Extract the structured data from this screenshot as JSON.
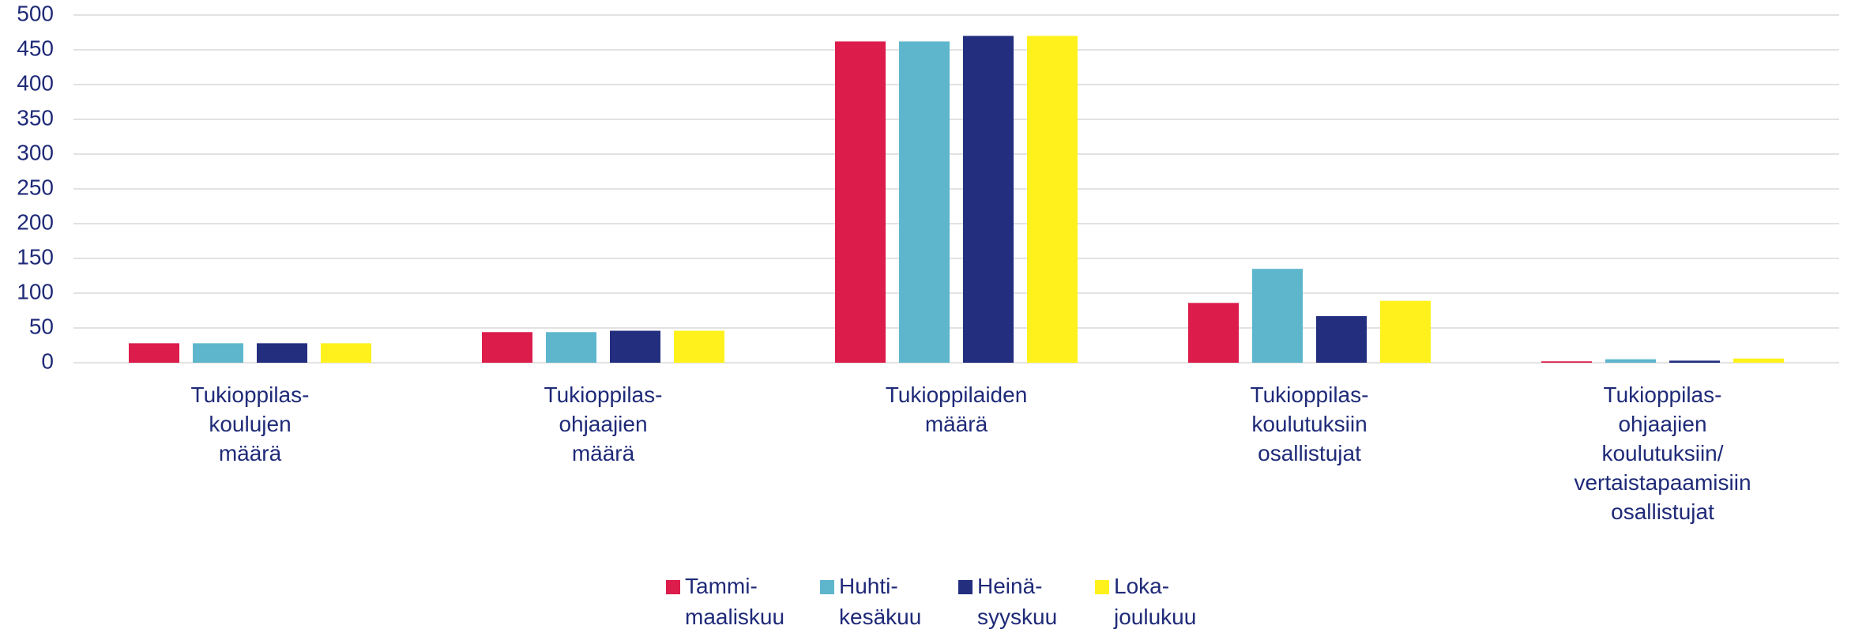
{
  "chart_data": {
    "type": "bar",
    "categories": [
      "Tukioppilas-\nkoulujen\nmäärä",
      "Tukioppilas-\nohjaajien\nmäärä",
      "Tukioppilaiden\nmäärä",
      "Tukioppilas-\nkoulutuksiin\nosallistujat",
      "Tukioppilas-\nohjaajien\nkoulutuksiin/\nvertaistapaamisiin\nosallistujat"
    ],
    "series": [
      {
        "name": "Tammi-\nmaaliskuu",
        "color": "#dc1c4b",
        "values": [
          28,
          44,
          462,
          86,
          2
        ]
      },
      {
        "name": "Huhti-\nkesäkuu",
        "color": "#5eb6cd",
        "values": [
          28,
          44,
          462,
          135,
          5
        ]
      },
      {
        "name": "Heinä-\nsyyskuu",
        "color": "#232e7f",
        "values": [
          28,
          46,
          470,
          67,
          3
        ]
      },
      {
        "name": "Loka-\njoulukuu",
        "color": "#fff21c",
        "values": [
          28,
          46,
          470,
          89,
          6
        ]
      }
    ],
    "ylim": [
      0,
      500
    ],
    "yticks": [
      0,
      50,
      100,
      150,
      200,
      250,
      300,
      350,
      400,
      450,
      500
    ],
    "grid": true,
    "legend": "bottom"
  }
}
